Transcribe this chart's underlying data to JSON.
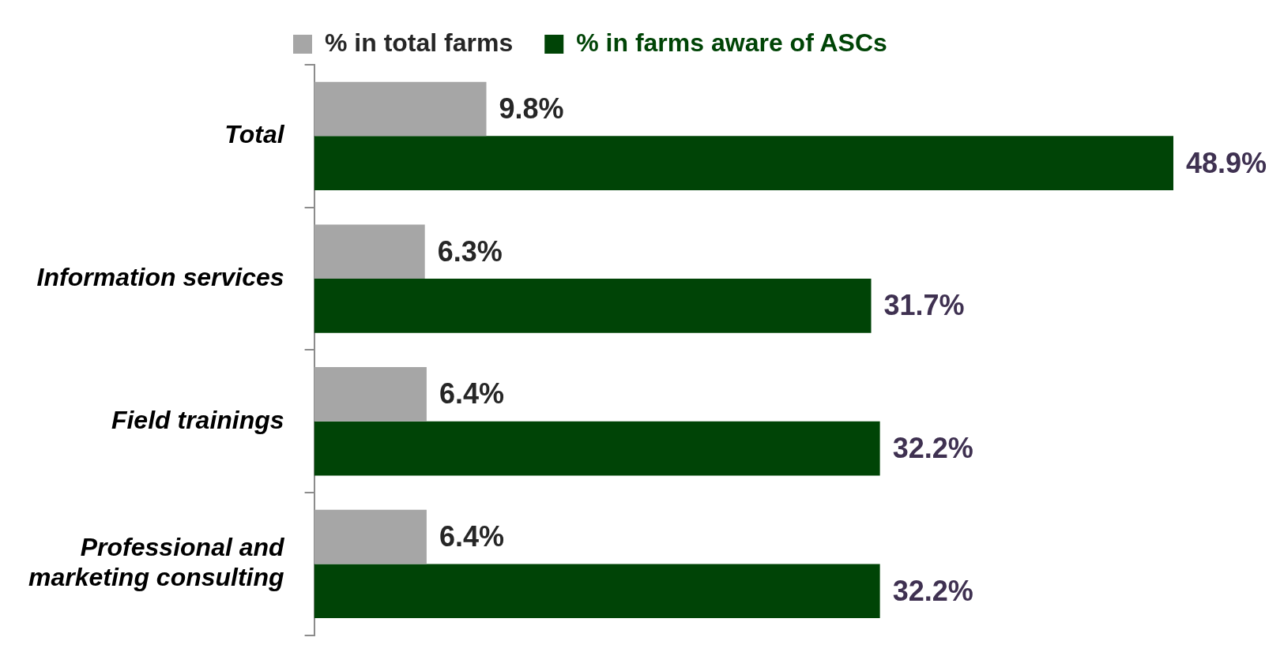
{
  "chart_data": {
    "type": "bar",
    "orientation": "horizontal",
    "categories": [
      "Total",
      "Information services",
      "Field trainings",
      "Professional and marketing consulting"
    ],
    "series": [
      {
        "name": "% in total farms",
        "color": "#a6a6a6",
        "values": [
          9.8,
          6.3,
          6.4,
          6.4
        ],
        "value_labels": [
          "9.8%",
          "6.3%",
          "6.4%",
          "6.4%"
        ]
      },
      {
        "name": "% in farms aware of ASCs",
        "color": "#004406",
        "values": [
          48.9,
          31.7,
          32.2,
          32.2
        ],
        "value_labels": [
          "48.9%",
          "31.7%",
          "32.2%",
          "32.2%"
        ]
      }
    ],
    "legend": "top"
  }
}
